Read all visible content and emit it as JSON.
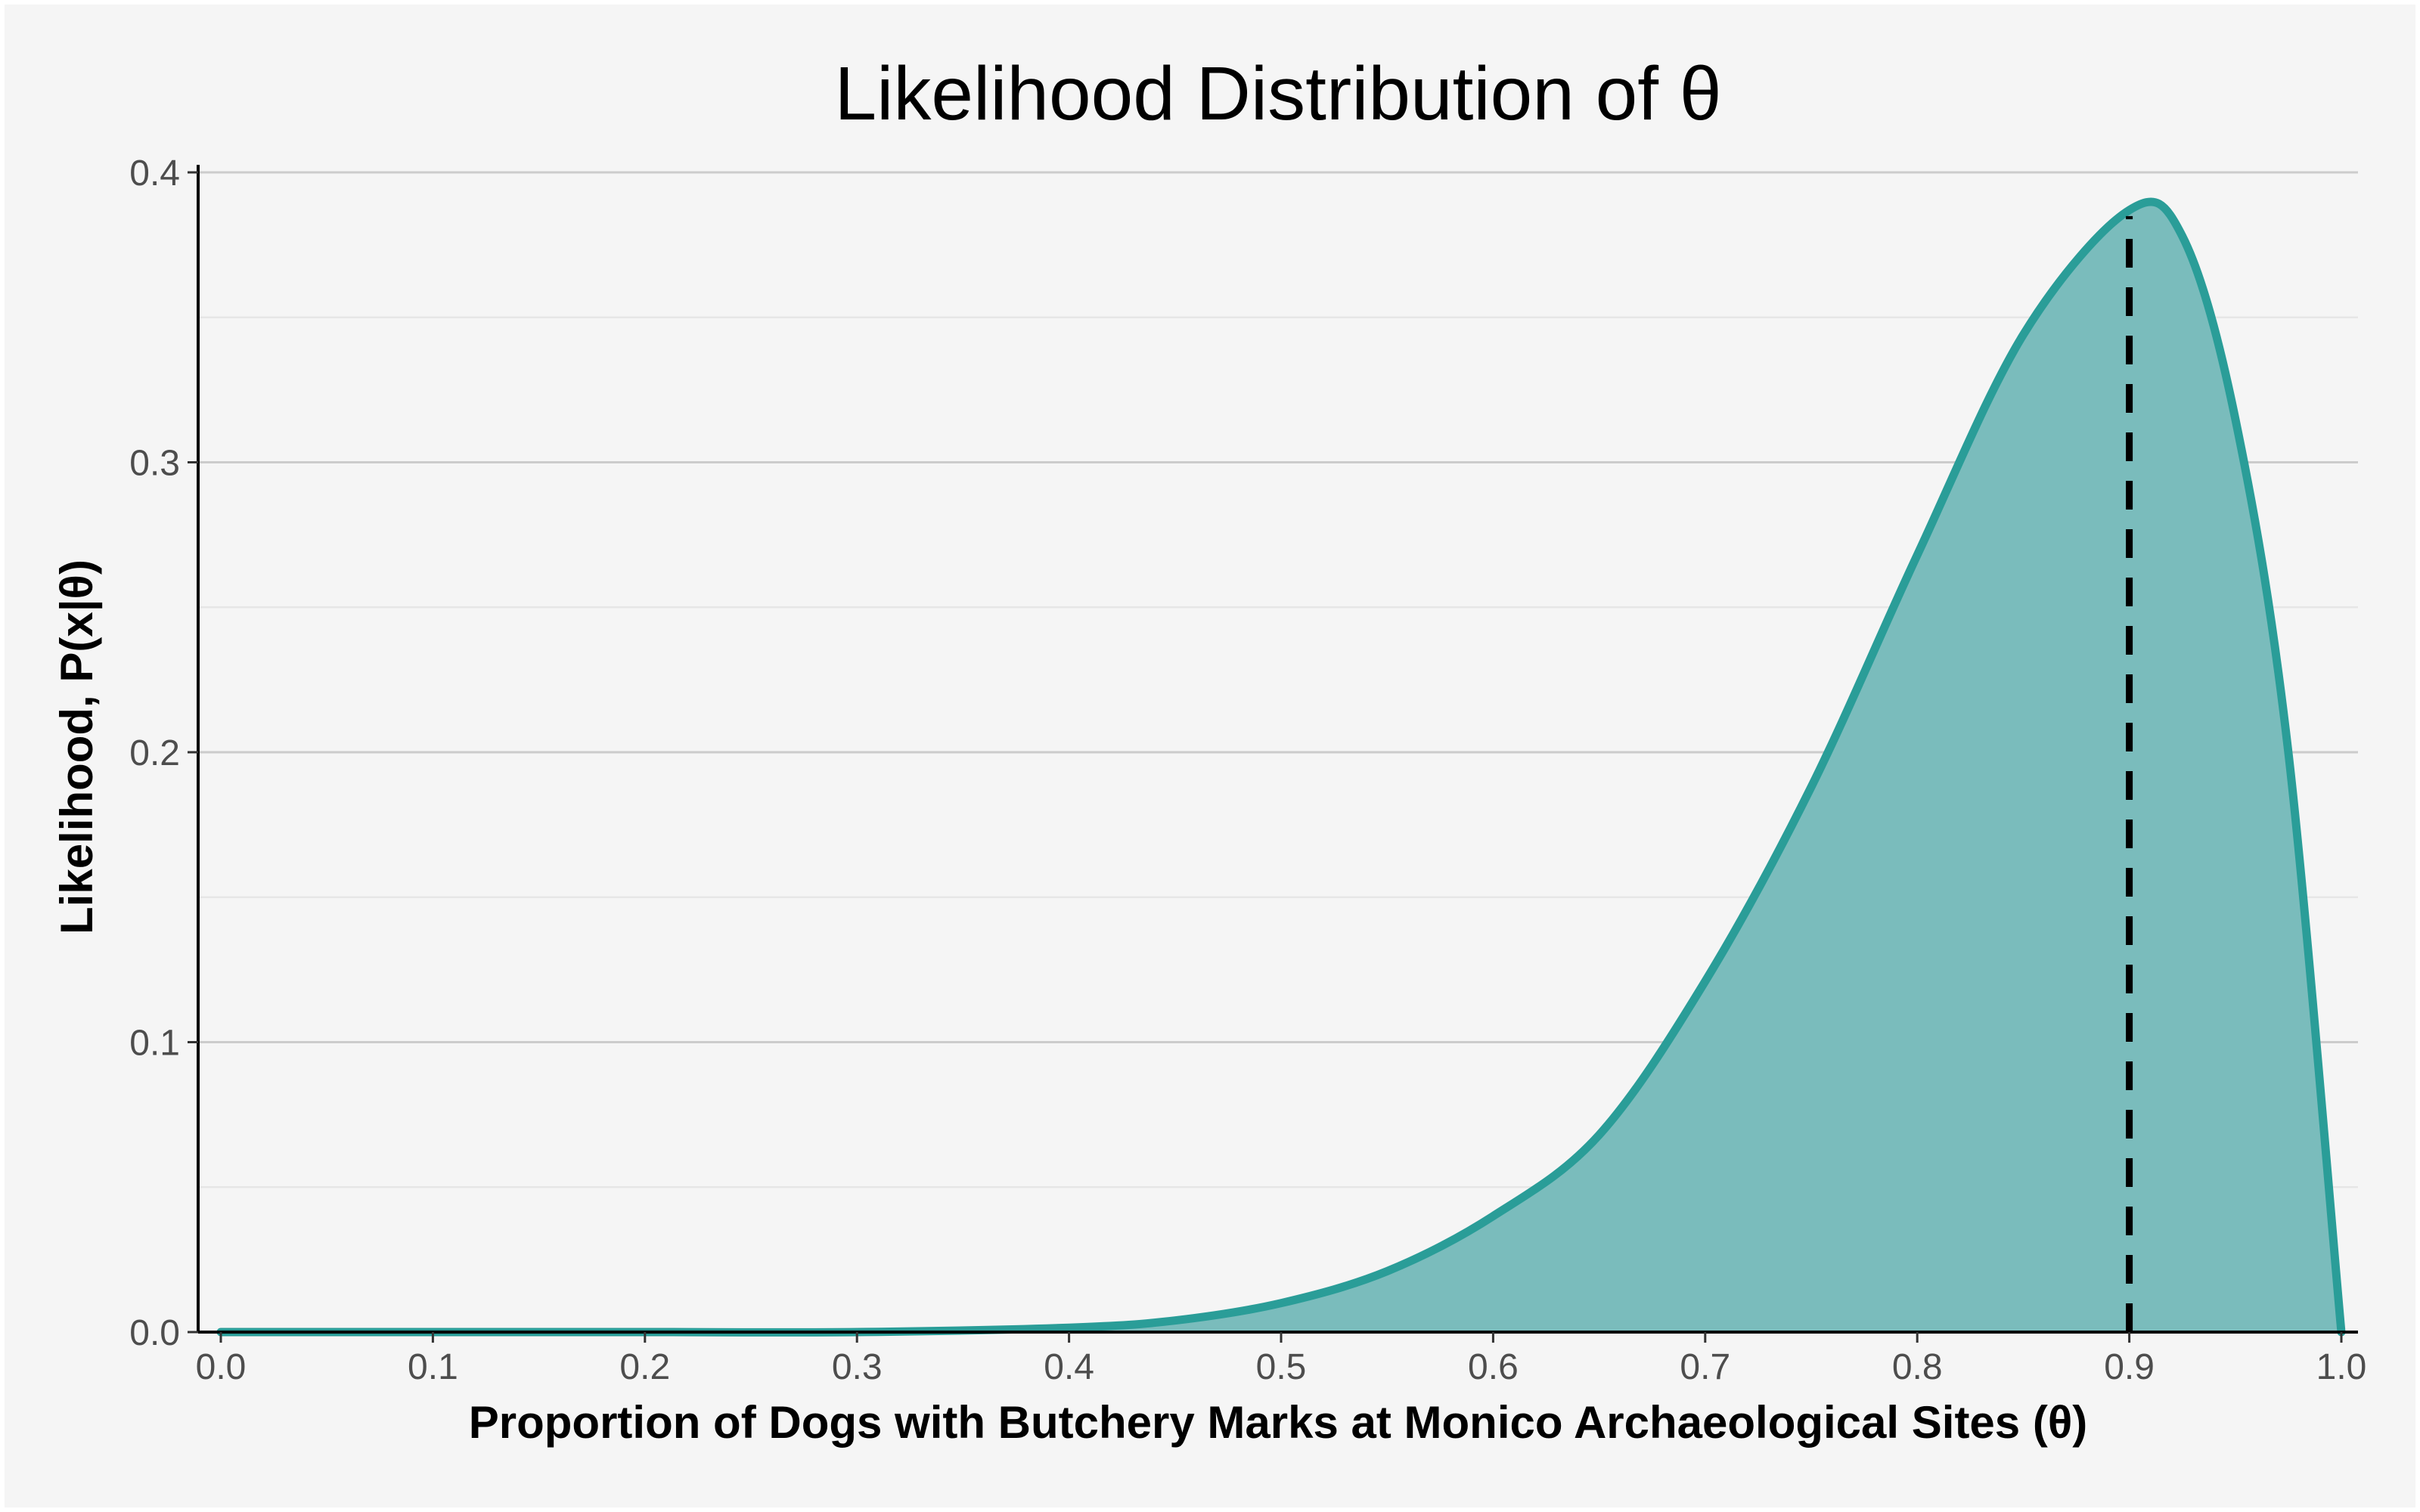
{
  "chart_data": {
    "type": "area",
    "title": "Likelihood Distribution of θ",
    "xlabel": "Proportion of Dogs with Butchery Marks at Monico Archaeological Sites (θ)",
    "ylabel": "Likelihood,  P(x|θ)",
    "xlim": [
      0.0,
      1.0
    ],
    "ylim": [
      0.0,
      0.4
    ],
    "x_ticks": [
      "0.0",
      "0.1",
      "0.2",
      "0.3",
      "0.4",
      "0.5",
      "0.6",
      "0.7",
      "0.8",
      "0.9",
      "1.0"
    ],
    "y_ticks": [
      "0.0",
      "0.1",
      "0.2",
      "0.3",
      "0.4"
    ],
    "grid": "horizontal",
    "series": [
      {
        "x": [
          0.0,
          0.1,
          0.2,
          0.3,
          0.4,
          0.45,
          0.5,
          0.55,
          0.6,
          0.65,
          0.7,
          0.75,
          0.8,
          0.85,
          0.9,
          0.925,
          0.95,
          0.975,
          1.0
        ],
        "y": [
          0.0,
          0.0,
          0.0,
          0.0,
          0.0015,
          0.004,
          0.01,
          0.021,
          0.04,
          0.068,
          0.121,
          0.188,
          0.268,
          0.344,
          0.387,
          0.378,
          0.315,
          0.2,
          0.0
        ]
      }
    ],
    "reference_line": {
      "x": 0.9,
      "style": "dashed"
    },
    "colors": {
      "curve": "#2a9d98",
      "fill": "#7abcbc",
      "reference": "#000000",
      "panel": "#f5f5f5"
    }
  }
}
